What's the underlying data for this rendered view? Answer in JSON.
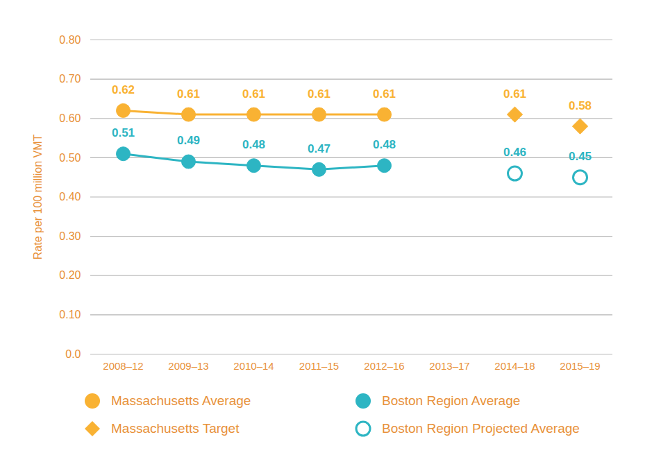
{
  "chart_data": {
    "type": "line",
    "categories": [
      "2008–12",
      "2009–13",
      "2010–14",
      "2011–15",
      "2012–16",
      "2013–17",
      "2014–18",
      "2015–19"
    ],
    "series": [
      {
        "name": "Massachusetts Average",
        "color": "#F9B233",
        "type": "line",
        "marker": "circle",
        "values": [
          0.62,
          0.61,
          0.61,
          0.61,
          0.61,
          null,
          null,
          null
        ]
      },
      {
        "name": "Boston Region Average",
        "color": "#2DB5C3",
        "type": "line",
        "marker": "circle",
        "values": [
          0.51,
          0.49,
          0.48,
          0.47,
          0.48,
          null,
          null,
          null
        ]
      },
      {
        "name": "Massachusetts Target",
        "color": "#F9B233",
        "type": "scatter",
        "marker": "diamond",
        "values": [
          null,
          null,
          null,
          null,
          null,
          null,
          0.61,
          0.58
        ]
      },
      {
        "name": "Boston Region Projected Average",
        "color": "#2DB5C3",
        "type": "scatter",
        "marker": "open_circle",
        "values": [
          null,
          null,
          null,
          null,
          null,
          null,
          0.46,
          0.45
        ]
      }
    ],
    "y_label": "Rate per 100 million VMT",
    "ylim": [
      0,
      0.8
    ],
    "yticks": [
      {
        "value": 0,
        "label": "0.0"
      },
      {
        "value": 0.1,
        "label": "0.10"
      },
      {
        "value": 0.2,
        "label": "0.20"
      },
      {
        "value": 0.3,
        "label": "0.30"
      },
      {
        "value": 0.4,
        "label": "0.40"
      },
      {
        "value": 0.5,
        "label": "0.50"
      },
      {
        "value": 0.6,
        "label": "0.60"
      },
      {
        "value": 0.7,
        "label": "0.70"
      },
      {
        "value": 0.8,
        "label": "0.80"
      }
    ],
    "grid": true,
    "data_labels": true,
    "legend": "bottom"
  }
}
